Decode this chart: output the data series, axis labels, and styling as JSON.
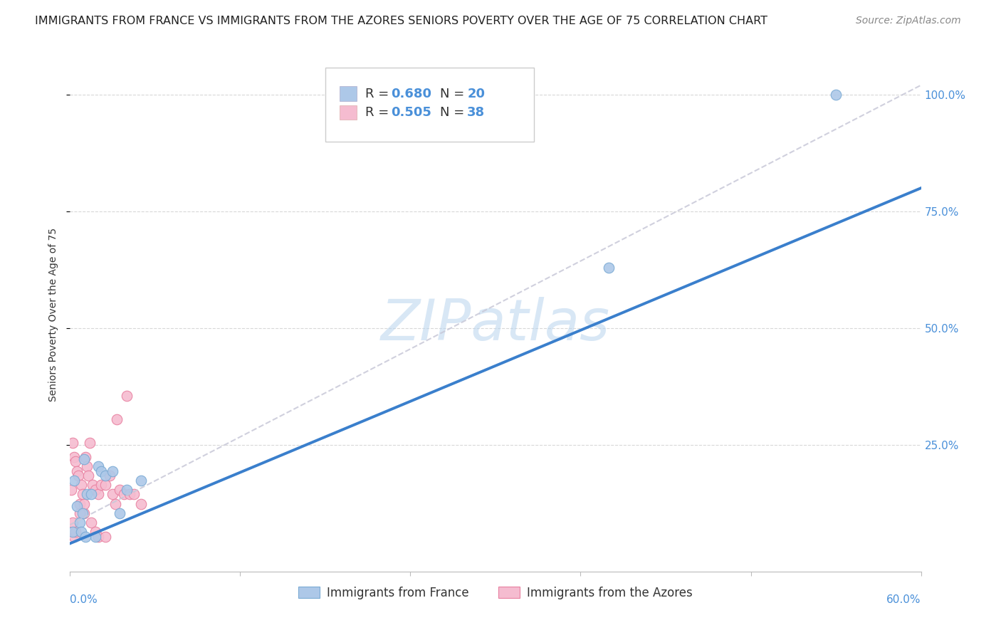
{
  "title": "IMMIGRANTS FROM FRANCE VS IMMIGRANTS FROM THE AZORES SENIORS POVERTY OVER THE AGE OF 75 CORRELATION CHART",
  "source": "Source: ZipAtlas.com",
  "ylabel": "Seniors Poverty Over the Age of 75",
  "xlim": [
    0.0,
    0.6
  ],
  "ylim": [
    -0.02,
    1.08
  ],
  "plot_ylim": [
    0.0,
    1.0
  ],
  "ytick_labels": [
    "100.0%",
    "75.0%",
    "50.0%",
    "25.0%"
  ],
  "ytick_values": [
    1.0,
    0.75,
    0.5,
    0.25
  ],
  "watermark": "ZIPatlas",
  "france_color": "#adc8e8",
  "france_edge": "#7aaad4",
  "azores_color": "#f5bcd0",
  "azores_edge": "#e880a0",
  "trend_france_color": "#3a7fcc",
  "trend_azores_color": "#c8c8d8",
  "legend_R_color": "#4a90d9",
  "legend_N_color": "#4a90d9",
  "france_scatter_x": [
    0.003,
    0.005,
    0.007,
    0.009,
    0.01,
    0.012,
    0.015,
    0.018,
    0.02,
    0.022,
    0.025,
    0.03,
    0.035,
    0.04,
    0.05,
    0.38,
    0.54,
    0.002,
    0.008,
    0.011
  ],
  "france_scatter_y": [
    0.175,
    0.12,
    0.085,
    0.105,
    0.22,
    0.145,
    0.145,
    0.055,
    0.205,
    0.195,
    0.185,
    0.195,
    0.105,
    0.155,
    0.175,
    0.63,
    1.0,
    0.065,
    0.065,
    0.055
  ],
  "azores_scatter_x": [
    0.001,
    0.002,
    0.003,
    0.004,
    0.005,
    0.006,
    0.007,
    0.008,
    0.009,
    0.01,
    0.011,
    0.012,
    0.013,
    0.014,
    0.016,
    0.018,
    0.02,
    0.022,
    0.025,
    0.028,
    0.03,
    0.032,
    0.035,
    0.038,
    0.04,
    0.042,
    0.045,
    0.05,
    0.002,
    0.003,
    0.004,
    0.007,
    0.01,
    0.015,
    0.018,
    0.02,
    0.025,
    0.033
  ],
  "azores_scatter_y": [
    0.155,
    0.255,
    0.225,
    0.215,
    0.195,
    0.185,
    0.125,
    0.165,
    0.145,
    0.105,
    0.225,
    0.205,
    0.185,
    0.255,
    0.165,
    0.155,
    0.145,
    0.165,
    0.165,
    0.185,
    0.145,
    0.125,
    0.155,
    0.145,
    0.355,
    0.145,
    0.145,
    0.125,
    0.085,
    0.055,
    0.065,
    0.105,
    0.125,
    0.085,
    0.065,
    0.055,
    0.055,
    0.305
  ],
  "france_trend_x": [
    0.0,
    0.6
  ],
  "france_trend_y": [
    0.04,
    0.8
  ],
  "azores_trend_x": [
    0.0,
    0.6
  ],
  "azores_trend_y": [
    0.08,
    1.02
  ],
  "grid_color": "#d8d8d8",
  "background_color": "#ffffff",
  "title_fontsize": 11.5,
  "source_fontsize": 10,
  "axis_label_fontsize": 10,
  "tick_fontsize": 11,
  "scatter_size": 110,
  "bottom_legend_labels": [
    "Immigrants from France",
    "Immigrants from the Azores"
  ]
}
